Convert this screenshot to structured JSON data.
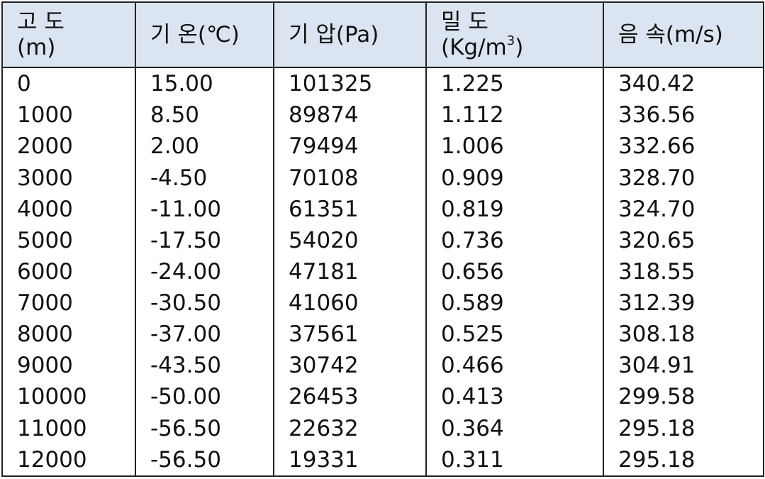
{
  "table": {
    "header": [
      [
        "고 도",
        "(m)"
      ],
      [
        "기 온(℃)"
      ],
      [
        "기 압(Pa)"
      ],
      [
        "밀 도",
        "(Kg/m",
        "3",
        ")"
      ],
      [
        "음 속(m/s)"
      ]
    ],
    "rows": [
      [
        "0",
        "15.00",
        "101325",
        "1.225",
        "340.42"
      ],
      [
        "1000",
        "8.50",
        "89874",
        "1.112",
        "336.56"
      ],
      [
        "2000",
        "2.00",
        "79494",
        "1.006",
        "332.66"
      ],
      [
        "3000",
        "-4.50",
        "70108",
        "0.909",
        "328.70"
      ],
      [
        "4000",
        "-11.00",
        "61351",
        "0.819",
        "324.70"
      ],
      [
        "5000",
        "-17.50",
        "54020",
        "0.736",
        "320.65"
      ],
      [
        "6000",
        "-24.00",
        "47181",
        "0.656",
        "318.55"
      ],
      [
        "7000",
        "-30.50",
        "41060",
        "0.589",
        "312.39"
      ],
      [
        "8000",
        "-37.00",
        "37561",
        "0.525",
        "308.18"
      ],
      [
        "9000",
        "-43.50",
        "30742",
        "0.466",
        "304.91"
      ],
      [
        "10000",
        "-50.00",
        "26453",
        "0.413",
        "299.58"
      ],
      [
        "11000",
        "-56.50",
        "22632",
        "0.364",
        "295.18"
      ],
      [
        "12000",
        "-56.50",
        "19331",
        "0.311",
        "295.18"
      ]
    ]
  }
}
